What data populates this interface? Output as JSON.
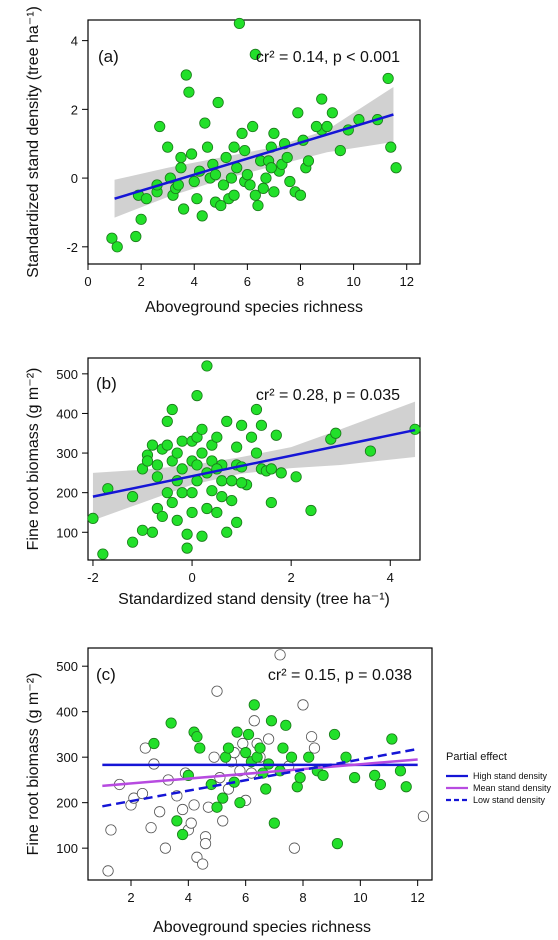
{
  "colors": {
    "point_fill": "#22e02a",
    "point_stroke": "#1a7a1a",
    "hollow_stroke": "#555555",
    "fit_line": "#1515d6",
    "ci_band": "#c9c9c9",
    "mean_line": "#b74be0"
  },
  "chart_data": [
    {
      "type": "scatter",
      "panel_label": "(a)",
      "stat_text": "cr² = 0.14, p < 0.001",
      "xlabel": "Aboveground species richness",
      "ylabel": "Standardized stand density (tree ha⁻¹)",
      "xlim": [
        0,
        12.5
      ],
      "ylim": [
        -2.5,
        4.6
      ],
      "xticks": [
        0,
        2,
        4,
        6,
        8,
        10,
        12
      ],
      "yticks": [
        -2,
        0,
        2,
        4
      ],
      "points": [
        [
          0.9,
          -1.75
        ],
        [
          1.1,
          -2.0
        ],
        [
          1.8,
          -1.7
        ],
        [
          2.0,
          -1.2
        ],
        [
          1.9,
          -0.5
        ],
        [
          2.2,
          -0.6
        ],
        [
          2.6,
          -0.4
        ],
        [
          2.6,
          -0.2
        ],
        [
          2.7,
          1.5
        ],
        [
          3.0,
          0.9
        ],
        [
          3.1,
          0.0
        ],
        [
          3.2,
          -0.5
        ],
        [
          3.3,
          -0.3
        ],
        [
          3.4,
          -0.2
        ],
        [
          3.5,
          0.3
        ],
        [
          3.5,
          0.6
        ],
        [
          3.6,
          -0.9
        ],
        [
          3.7,
          3.0
        ],
        [
          3.8,
          2.5
        ],
        [
          3.9,
          0.7
        ],
        [
          4.0,
          -0.1
        ],
        [
          4.1,
          -0.6
        ],
        [
          4.2,
          0.2
        ],
        [
          4.3,
          -1.1
        ],
        [
          4.4,
          1.6
        ],
        [
          4.5,
          0.9
        ],
        [
          4.6,
          0.0
        ],
        [
          4.7,
          0.4
        ],
        [
          4.8,
          0.1
        ],
        [
          4.8,
          -0.7
        ],
        [
          4.9,
          2.2
        ],
        [
          5.0,
          -0.8
        ],
        [
          5.1,
          -0.2
        ],
        [
          5.2,
          0.6
        ],
        [
          5.3,
          -0.6
        ],
        [
          5.4,
          0.0
        ],
        [
          5.5,
          -0.5
        ],
        [
          5.6,
          0.3
        ],
        [
          5.7,
          4.5
        ],
        [
          5.8,
          1.3
        ],
        [
          5.9,
          0.8
        ],
        [
          5.9,
          -0.1
        ],
        [
          6.0,
          0.1
        ],
        [
          6.1,
          -0.2
        ],
        [
          6.2,
          1.5
        ],
        [
          6.3,
          3.6
        ],
        [
          6.3,
          -0.5
        ],
        [
          6.4,
          -0.8
        ],
        [
          6.5,
          0.5
        ],
        [
          6.6,
          -0.3
        ],
        [
          6.7,
          0.0
        ],
        [
          6.8,
          0.5
        ],
        [
          6.9,
          0.9
        ],
        [
          7.0,
          1.3
        ],
        [
          7.0,
          -0.4
        ],
        [
          7.2,
          0.2
        ],
        [
          7.3,
          0.4
        ],
        [
          7.4,
          1.0
        ],
        [
          7.5,
          0.6
        ],
        [
          7.6,
          -0.1
        ],
        [
          7.8,
          -0.4
        ],
        [
          7.9,
          1.9
        ],
        [
          8.0,
          -0.5
        ],
        [
          8.1,
          1.1
        ],
        [
          8.2,
          0.3
        ],
        [
          8.3,
          0.5
        ],
        [
          8.8,
          1.4
        ],
        [
          8.8,
          2.3
        ],
        [
          9.0,
          1.5
        ],
        [
          9.2,
          1.9
        ],
        [
          9.5,
          0.8
        ],
        [
          9.8,
          1.4
        ],
        [
          10.2,
          1.7
        ],
        [
          10.9,
          1.7
        ],
        [
          11.3,
          2.9
        ],
        [
          11.4,
          0.9
        ],
        [
          11.6,
          0.3
        ],
        [
          8.6,
          1.5
        ],
        [
          6.9,
          0.3
        ],
        [
          5.5,
          0.9
        ]
      ],
      "fit": {
        "x": [
          1,
          11.5
        ],
        "y": [
          -0.6,
          1.85
        ]
      },
      "ci": {
        "x": [
          1,
          3,
          5,
          7,
          9,
          11.5
        ],
        "lower": [
          -1.15,
          -0.55,
          -0.05,
          0.35,
          0.75,
          1.05
        ],
        "upper": [
          -0.05,
          0.3,
          0.6,
          0.9,
          1.4,
          2.65
        ]
      }
    },
    {
      "type": "scatter",
      "panel_label": "(b)",
      "stat_text": "cr² = 0.28, p = 0.035",
      "xlabel": "Standardized stand density (tree ha⁻¹)",
      "ylabel": "Fine root biomass (g m⁻²)",
      "xlim": [
        -2.1,
        4.6
      ],
      "ylim": [
        30,
        540
      ],
      "xticks": [
        -2,
        0,
        2,
        4
      ],
      "yticks": [
        100,
        200,
        300,
        400,
        500
      ],
      "points": [
        [
          -2.0,
          135
        ],
        [
          -1.8,
          45
        ],
        [
          -1.7,
          210
        ],
        [
          -1.2,
          75
        ],
        [
          -1.2,
          190
        ],
        [
          -1.0,
          260
        ],
        [
          -1.0,
          105
        ],
        [
          -0.9,
          295
        ],
        [
          -0.9,
          280
        ],
        [
          -0.8,
          320
        ],
        [
          -0.8,
          100
        ],
        [
          -0.7,
          270
        ],
        [
          -0.7,
          240
        ],
        [
          -0.7,
          160
        ],
        [
          -0.6,
          310
        ],
        [
          -0.6,
          140
        ],
        [
          -0.5,
          200
        ],
        [
          -0.5,
          320
        ],
        [
          -0.5,
          380
        ],
        [
          -0.4,
          410
        ],
        [
          -0.4,
          280
        ],
        [
          -0.4,
          175
        ],
        [
          -0.3,
          300
        ],
        [
          -0.3,
          230
        ],
        [
          -0.3,
          130
        ],
        [
          -0.2,
          330
        ],
        [
          -0.2,
          260
        ],
        [
          -0.2,
          200
        ],
        [
          -0.1,
          95
        ],
        [
          -0.1,
          60
        ],
        [
          0.0,
          330
        ],
        [
          0.0,
          280
        ],
        [
          0.0,
          200
        ],
        [
          0.0,
          150
        ],
        [
          0.1,
          445
        ],
        [
          0.1,
          340
        ],
        [
          0.1,
          270
        ],
        [
          0.1,
          230
        ],
        [
          0.2,
          360
        ],
        [
          0.2,
          300
        ],
        [
          0.2,
          90
        ],
        [
          0.3,
          520
        ],
        [
          0.3,
          250
        ],
        [
          0.3,
          160
        ],
        [
          0.4,
          320
        ],
        [
          0.4,
          280
        ],
        [
          0.4,
          205
        ],
        [
          0.5,
          150
        ],
        [
          0.5,
          340
        ],
        [
          0.6,
          270
        ],
        [
          0.6,
          230
        ],
        [
          0.6,
          190
        ],
        [
          0.7,
          100
        ],
        [
          0.7,
          380
        ],
        [
          0.8,
          230
        ],
        [
          0.8,
          180
        ],
        [
          0.9,
          315
        ],
        [
          0.9,
          270
        ],
        [
          0.9,
          125
        ],
        [
          1.0,
          370
        ],
        [
          1.0,
          265
        ],
        [
          1.1,
          220
        ],
        [
          1.2,
          340
        ],
        [
          1.3,
          410
        ],
        [
          1.3,
          300
        ],
        [
          1.4,
          260
        ],
        [
          1.4,
          370
        ],
        [
          1.5,
          255
        ],
        [
          1.6,
          175
        ],
        [
          1.6,
          260
        ],
        [
          1.7,
          345
        ],
        [
          1.8,
          250
        ],
        [
          2.1,
          240
        ],
        [
          2.4,
          155
        ],
        [
          2.8,
          335
        ],
        [
          2.9,
          350
        ],
        [
          3.6,
          305
        ],
        [
          4.5,
          360
        ],
        [
          0.5,
          260
        ],
        [
          1.0,
          225
        ]
      ],
      "fit": {
        "x": [
          -2,
          4.5
        ],
        "y": [
          190,
          358
        ]
      },
      "ci": {
        "x": [
          -2,
          -1,
          0,
          1,
          2,
          3,
          4.5
        ],
        "lower": [
          130,
          175,
          220,
          248,
          262,
          270,
          290
        ],
        "upper": [
          250,
          258,
          270,
          290,
          315,
          360,
          430
        ]
      }
    },
    {
      "type": "scatter",
      "panel_label": "(c)",
      "stat_text": "cr² = 0.15, p = 0.038",
      "xlabel": "Aboveground species richness",
      "ylabel": "Fine root biomass (g m⁻²)",
      "xlim": [
        0.5,
        12.5
      ],
      "ylim": [
        30,
        540
      ],
      "xticks": [
        2,
        4,
        6,
        8,
        10,
        12
      ],
      "yticks": [
        100,
        200,
        300,
        400,
        500
      ],
      "points_filled": [
        [
          2.8,
          330
        ],
        [
          3.4,
          375
        ],
        [
          3.6,
          160
        ],
        [
          3.8,
          130
        ],
        [
          4.0,
          260
        ],
        [
          4.2,
          355
        ],
        [
          4.3,
          345
        ],
        [
          4.4,
          320
        ],
        [
          4.8,
          240
        ],
        [
          5.0,
          190
        ],
        [
          5.2,
          210
        ],
        [
          5.3,
          300
        ],
        [
          5.6,
          245
        ],
        [
          5.7,
          355
        ],
        [
          5.8,
          200
        ],
        [
          6.1,
          350
        ],
        [
          6.2,
          290
        ],
        [
          6.3,
          415
        ],
        [
          6.4,
          300
        ],
        [
          6.5,
          320
        ],
        [
          6.6,
          265
        ],
        [
          6.7,
          230
        ],
        [
          6.8,
          285
        ],
        [
          6.9,
          380
        ],
        [
          7.0,
          155
        ],
        [
          7.2,
          270
        ],
        [
          7.4,
          370
        ],
        [
          7.6,
          300
        ],
        [
          7.8,
          235
        ],
        [
          7.9,
          255
        ],
        [
          8.2,
          300
        ],
        [
          8.5,
          270
        ],
        [
          9.1,
          350
        ],
        [
          9.2,
          110
        ],
        [
          9.8,
          255
        ],
        [
          10.5,
          260
        ],
        [
          10.7,
          240
        ],
        [
          11.1,
          340
        ],
        [
          11.4,
          270
        ],
        [
          11.6,
          235
        ],
        [
          6.0,
          310
        ],
        [
          5.4,
          320
        ],
        [
          7.3,
          320
        ],
        [
          8.7,
          260
        ],
        [
          9.5,
          300
        ]
      ],
      "points_hollow": [
        [
          1.2,
          50
        ],
        [
          1.3,
          140
        ],
        [
          1.6,
          240
        ],
        [
          2.0,
          195
        ],
        [
          2.1,
          210
        ],
        [
          2.4,
          220
        ],
        [
          2.5,
          320
        ],
        [
          2.7,
          145
        ],
        [
          2.8,
          285
        ],
        [
          3.0,
          180
        ],
        [
          3.2,
          100
        ],
        [
          3.3,
          250
        ],
        [
          3.6,
          215
        ],
        [
          3.8,
          185
        ],
        [
          3.9,
          265
        ],
        [
          4.0,
          140
        ],
        [
          4.1,
          155
        ],
        [
          4.2,
          195
        ],
        [
          4.3,
          80
        ],
        [
          4.5,
          65
        ],
        [
          4.6,
          125
        ],
        [
          4.6,
          110
        ],
        [
          4.7,
          190
        ],
        [
          4.9,
          300
        ],
        [
          5.0,
          445
        ],
        [
          5.1,
          255
        ],
        [
          5.2,
          160
        ],
        [
          5.4,
          230
        ],
        [
          5.5,
          290
        ],
        [
          5.6,
          310
        ],
        [
          5.8,
          270
        ],
        [
          5.9,
          330
        ],
        [
          6.0,
          205
        ],
        [
          6.2,
          265
        ],
        [
          6.3,
          380
        ],
        [
          6.4,
          330
        ],
        [
          6.5,
          300
        ],
        [
          6.8,
          340
        ],
        [
          7.2,
          525
        ],
        [
          7.5,
          280
        ],
        [
          7.7,
          100
        ],
        [
          8.0,
          415
        ],
        [
          8.3,
          345
        ],
        [
          8.4,
          320
        ],
        [
          12.2,
          170
        ]
      ],
      "lines": [
        {
          "name": "High stand density",
          "style": "solid",
          "color": "#1515d6",
          "x": [
            1,
            12
          ],
          "y": [
            283,
            283
          ]
        },
        {
          "name": "Mean stand density",
          "style": "solid",
          "color": "#b74be0",
          "x": [
            1,
            12
          ],
          "y": [
            237,
            295
          ]
        },
        {
          "name": "Low stand density",
          "style": "dashed",
          "color": "#1515d6",
          "x": [
            1,
            12
          ],
          "y": [
            192,
            318
          ]
        }
      ],
      "legend": {
        "title": "Partial effect",
        "position": "right"
      }
    }
  ]
}
